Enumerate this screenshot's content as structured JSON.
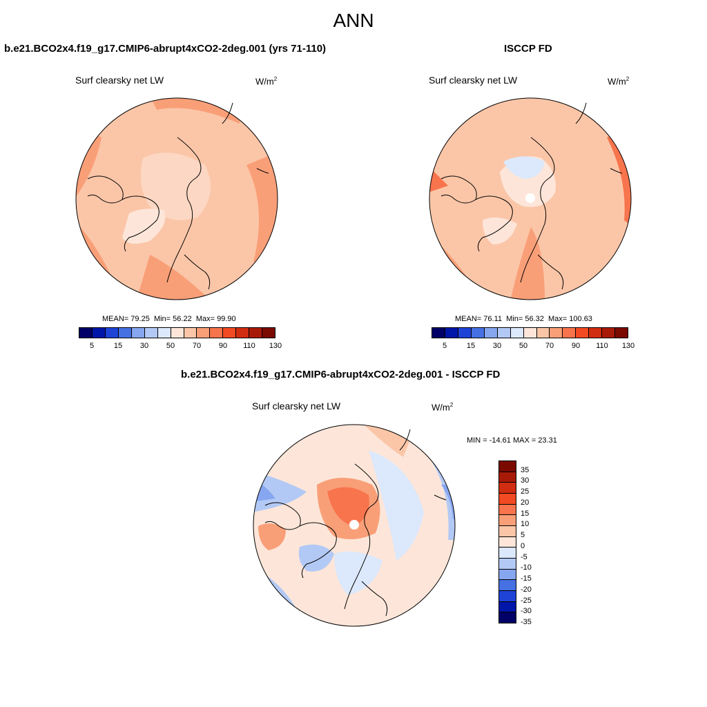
{
  "figure": {
    "title": "ANN"
  },
  "panels": [
    {
      "case_title": "b.e21.BCO2x4.f19_g17.CMIP6-abrupt4xCO2-2deg.001 (yrs 71-110)",
      "variable": "Surf clearsky net LW",
      "units_base": "W/m",
      "units_exp": "2",
      "stats": {
        "mean_label": "MEAN=",
        "mean": "79.25",
        "min_label": "Min=",
        "min": "56.22",
        "max_label": "Max=",
        "max": "99.90"
      }
    },
    {
      "case_title": "ISCCP FD",
      "variable": "Surf clearsky net LW",
      "units_base": "W/m",
      "units_exp": "2",
      "stats": {
        "mean_label": "MEAN=",
        "mean": "76.11",
        "min_label": "Min=",
        "min": "56.32",
        "max_label": "Max=",
        "max": "100.63"
      }
    },
    {
      "case_title": "b.e21.BCO2x4.f19_g17.CMIP6-abrupt4xCO2-2deg.001 - ISCCP FD",
      "variable": "Surf clearsky net LW",
      "units_base": "W/m",
      "units_exp": "2",
      "stats_line": "MIN = -14.61 MAX =  23.31"
    }
  ],
  "colorbar_abs": {
    "colors": [
      "#000066",
      "#0016a8",
      "#1f43d6",
      "#4571e3",
      "#86a6f0",
      "#b3c9f5",
      "#dce8fb",
      "#fde6d9",
      "#fbc6a8",
      "#f99f78",
      "#f7744c",
      "#f24a22",
      "#d12d10",
      "#a81a08",
      "#7a0a00"
    ],
    "tick_labels": [
      "5",
      "15",
      "30",
      "50",
      "70",
      "90",
      "110",
      "130"
    ]
  },
  "colorbar_diff": {
    "colors": [
      "#7a0a00",
      "#a81a08",
      "#d12d10",
      "#f24a22",
      "#f7744c",
      "#f99f78",
      "#fbc6a8",
      "#fde6d9",
      "#dce8fb",
      "#b3c9f5",
      "#86a6f0",
      "#4571e3",
      "#1f43d6",
      "#0016a8",
      "#000066"
    ],
    "tick_labels": [
      "35",
      "30",
      "25",
      "20",
      "15",
      "10",
      "5",
      "0",
      "-5",
      "-10",
      "-15",
      "-20",
      "-25",
      "-30",
      "-35"
    ]
  },
  "map_colors": {
    "base_abs": "#fbc6a8",
    "warm_abs": "#f99f78",
    "hot_abs": "#f7744c",
    "cool_abs": "#fde6d9",
    "cold_abs": "#dce8fb",
    "base_diff": "#fde6d9",
    "diff_blue1": "#dce8fb",
    "diff_blue2": "#b3c9f5",
    "diff_blue3": "#86a6f0",
    "diff_blue4": "#4571e3",
    "diff_red1": "#fbc6a8",
    "diff_red2": "#f99f78",
    "diff_red3": "#f7744c",
    "coast": "#000000"
  }
}
